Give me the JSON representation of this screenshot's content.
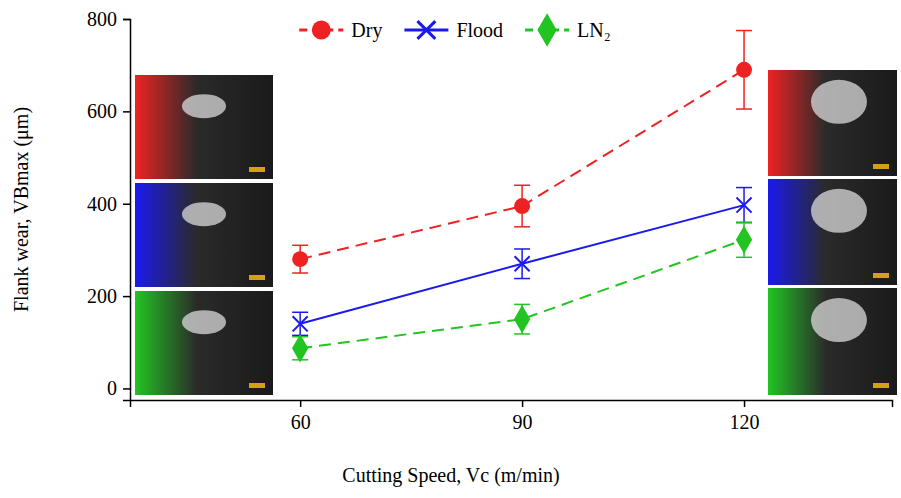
{
  "chart_data": {
    "type": "line",
    "xlabel": "Cutting Speed, Vc (m/min)",
    "ylabel": "Flank wear, VBmax (μm)",
    "x": [
      60,
      90,
      120
    ],
    "xlim": [
      37,
      140
    ],
    "xticks": [
      60,
      90,
      120
    ],
    "ylim": [
      -25,
      800
    ],
    "yticks": [
      0,
      200,
      400,
      600,
      800
    ],
    "grid": false,
    "legend": "top",
    "series": [
      {
        "name": "Dry",
        "color": "#ee2222",
        "marker": "circle",
        "line_style": "dashed",
        "values": [
          280,
          395,
          690
        ],
        "errors": [
          30,
          45,
          85
        ]
      },
      {
        "name": "Flood",
        "color": "#1a1aee",
        "marker": "x",
        "line_style": "solid",
        "values": [
          140,
          270,
          397
        ],
        "errors": [
          25,
          32,
          38
        ]
      },
      {
        "name": "LN₂",
        "color": "#22c422",
        "marker": "diamond",
        "line_style": "dashed",
        "values": [
          87,
          150,
          322
        ],
        "errors": [
          25,
          32,
          38
        ]
      }
    ]
  }
}
